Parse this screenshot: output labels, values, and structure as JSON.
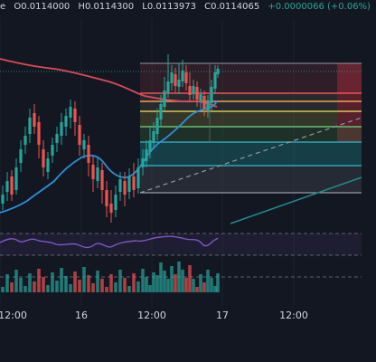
{
  "ohlc_bar": {
    "symbol_fragment": "e",
    "open": "O0.0114000",
    "high": "H0.0114300",
    "low": "L0.0113973",
    "close": "C0.0114065",
    "change": "+0.0000066 (+0.06%)"
  },
  "time_axis": {
    "labels": [
      "12:00",
      "16",
      "12:00",
      "17",
      "12:00"
    ]
  },
  "colors": {
    "background": "#131722",
    "up": "#26a69a",
    "down": "#ef5350",
    "ema_long": "#e04a57",
    "ema_short": "#2f8fd8",
    "rsi": "#7e57c2",
    "fib_upper_zone": "#f23645",
    "fib_line_orange": "#f7a046",
    "fib_line_yellow": "#d6c84a",
    "fib_line_green": "#62c06e",
    "fib_line_teal": "#2aa6b6",
    "trend_line": "#1f8a8f"
  },
  "icons": {
    "drawing_tool": "fibonacci-retracement-icon",
    "trend_line": "trend-line-icon"
  }
}
